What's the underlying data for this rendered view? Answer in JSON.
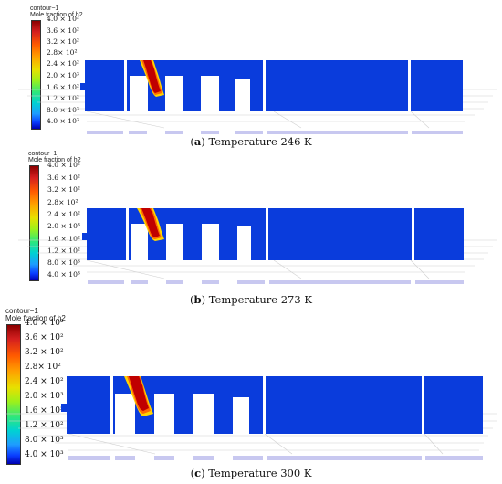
{
  "legend": {
    "title": "contour−1",
    "subtitle": "Mole fraction of h2",
    "ticks": [
      "4.0 × 10²",
      "3.6 × 10²",
      "3.2 × 10²",
      "2.8× 10²",
      "2.4 × 10²",
      "2.0 × 10³",
      "1.6 × 10²",
      "1.2 × 10²",
      "8.0 × 10³",
      "4.0 × 10³"
    ],
    "colors": [
      "#8b0000",
      "#d41f1f",
      "#ff5a00",
      "#ff9f00",
      "#e8e000",
      "#9ef01a",
      "#2ee87a",
      "#00d2d2",
      "#1e9cff",
      "#0a3cff",
      "#0000b0"
    ]
  },
  "panels": [
    {
      "letter": "a",
      "caption": "Temperature 246 K"
    },
    {
      "letter": "b",
      "caption": "Temperature 273 K"
    },
    {
      "letter": "c",
      "caption": "Temperature 300 K"
    }
  ],
  "colors": {
    "domain": "#0a3cdc",
    "plume_core": "#c00000",
    "plume_edge": "#ffd400",
    "gap": "#ffffff",
    "grid": "#d0d0d0",
    "base": "#c8c8f0"
  }
}
